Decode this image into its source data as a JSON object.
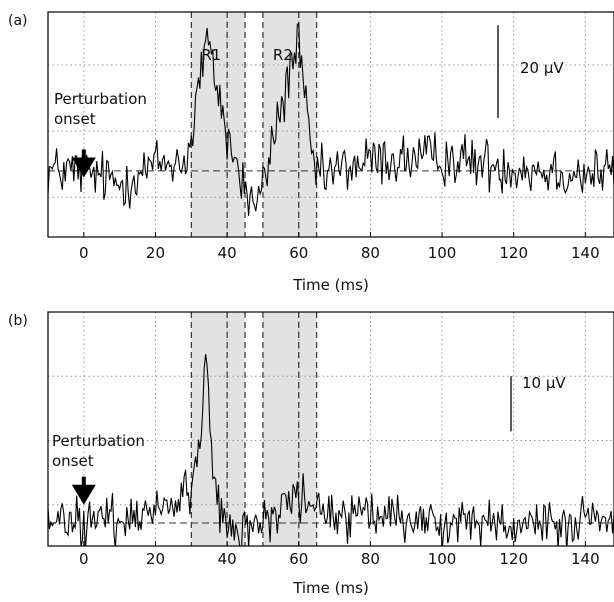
{
  "chart_data": [
    {
      "type": "line",
      "panel_label": "(a)",
      "xlabel": "Time (ms)",
      "ylabel": "",
      "xlim": [
        -10,
        148
      ],
      "xticks": [
        0,
        20,
        40,
        60,
        80,
        100,
        120,
        140
      ],
      "grid": true,
      "baseline_dashed": true,
      "windows": [
        {
          "label": "R1",
          "x0": 30,
          "x1": 45,
          "inner_dashed": 40
        },
        {
          "label": "R2",
          "x0": 50,
          "x1": 65,
          "inner_dashed": 60
        }
      ],
      "scale_bar": {
        "label": "20 μV"
      },
      "annotation": {
        "text_lines": [
          "Perturbation",
          "onset"
        ],
        "x": 0
      },
      "series": [
        {
          "seed": 12345,
          "noise": 4.0,
          "x": [
            -10,
            0,
            10,
            20,
            28,
            30,
            32,
            34,
            36,
            38,
            40,
            42,
            44,
            46,
            48,
            50,
            52,
            54,
            56,
            58,
            60,
            62,
            64,
            66,
            70,
            80,
            100,
            120,
            140,
            148
          ],
          "y": [
            0,
            0,
            -4,
            2,
            3,
            8,
            26,
            38,
            32,
            22,
            10,
            4,
            -3,
            -8,
            -10,
            -5,
            5,
            15,
            22,
            34,
            38,
            18,
            2,
            -2,
            0,
            3,
            4,
            1,
            -1,
            0
          ]
        }
      ]
    },
    {
      "type": "line",
      "panel_label": "(b)",
      "xlabel": "Time (ms)",
      "ylabel": "",
      "xlim": [
        -10,
        148
      ],
      "xticks": [
        0,
        20,
        40,
        60,
        80,
        100,
        120,
        140
      ],
      "grid": true,
      "baseline_dashed": true,
      "windows": [
        {
          "label": "",
          "x0": 30,
          "x1": 45,
          "inner_dashed": 40
        },
        {
          "label": "",
          "x0": 50,
          "x1": 65,
          "inner_dashed": 60
        }
      ],
      "scale_bar": {
        "label": "10 μV"
      },
      "annotation": {
        "text_lines": [
          "Perturbation",
          "onset"
        ],
        "x": 0
      },
      "series": [
        {
          "seed": 777,
          "noise": 1.3,
          "x": [
            -10,
            0,
            10,
            20,
            24,
            28,
            30,
            32,
            33,
            34,
            35,
            36,
            37,
            38,
            40,
            44,
            48,
            52,
            56,
            60,
            64,
            70,
            80,
            100,
            120,
            140,
            148
          ],
          "y": [
            0,
            0,
            0.5,
            1.5,
            2.5,
            3,
            3,
            8,
            12,
            18,
            14,
            6,
            3,
            1,
            0,
            -1,
            0,
            1,
            2,
            3,
            1.5,
            1,
            0.5,
            0.3,
            0,
            0,
            0
          ]
        }
      ]
    }
  ]
}
